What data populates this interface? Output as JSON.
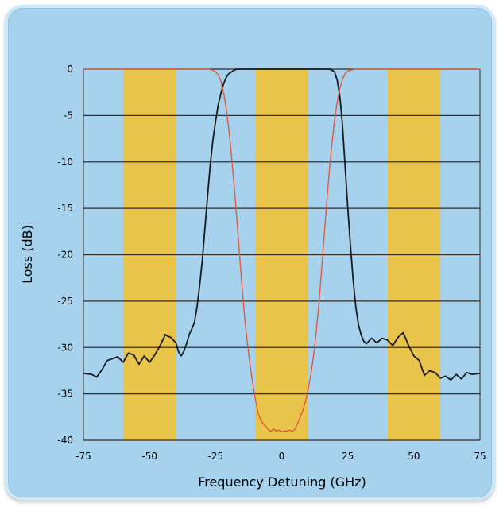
{
  "chart_data": {
    "type": "line",
    "title": "",
    "xlabel": "Frequency Detuning (GHz)",
    "ylabel": "Loss (dB)",
    "xlim": [
      -75,
      75
    ],
    "ylim": [
      -40,
      0
    ],
    "x_ticks": [
      "-75",
      "-50",
      "-25",
      "0",
      "25",
      "50",
      "75"
    ],
    "y_ticks": [
      "0",
      "-5",
      "-10",
      "-15",
      "-20",
      "-25",
      "-30",
      "-35",
      "-40"
    ],
    "grid": "horizontal",
    "highlight_bands": [
      [
        -60,
        -40
      ],
      [
        -10,
        10
      ],
      [
        40,
        60
      ]
    ],
    "colors": {
      "band": "#e8c44a",
      "plot_background": "#a6d2ee",
      "grid": "#3a2a20",
      "series_black": "#1a1a1a",
      "series_red": "#e05a3a"
    },
    "series": [
      {
        "color": "#1a1a1a",
        "x": [
          -75,
          -72,
          -70,
          -68,
          -66,
          -64,
          -62,
          -60,
          -58,
          -56,
          -54,
          -52,
          -50,
          -48,
          -46,
          -44,
          -43,
          -42,
          -41,
          -40,
          -39,
          -38,
          -37,
          -36,
          -35,
          -34,
          -33,
          -32,
          -31,
          -30,
          -29,
          -28,
          -27,
          -26,
          -25,
          -24,
          -23,
          -22,
          -21,
          -20,
          -19,
          -18,
          -17,
          -16,
          -15,
          -14,
          -13,
          -12,
          -11,
          -10,
          -8,
          -6,
          -4,
          -2,
          0,
          2,
          4,
          6,
          8,
          10,
          12,
          14,
          16,
          18,
          19,
          20,
          21,
          22,
          23,
          24,
          25,
          26,
          27,
          28,
          29,
          30,
          31,
          32,
          34,
          36,
          38,
          40,
          42,
          44,
          46,
          48,
          50,
          52,
          54,
          56,
          58,
          60,
          62,
          64,
          66,
          68,
          70,
          72,
          75
        ],
        "y": [
          -32.8,
          -32.9,
          -33.2,
          -32.4,
          -31.4,
          -31.2,
          -31.0,
          -31.6,
          -30.6,
          -30.8,
          -31.8,
          -30.9,
          -31.6,
          -30.8,
          -29.8,
          -28.6,
          -28.8,
          -28.9,
          -29.2,
          -29.5,
          -30.5,
          -30.9,
          -30.4,
          -29.6,
          -28.6,
          -28.0,
          -27.3,
          -25.6,
          -23.2,
          -20.5,
          -17.0,
          -13.5,
          -10.2,
          -7.6,
          -5.6,
          -3.8,
          -2.6,
          -1.6,
          -0.9,
          -0.5,
          -0.3,
          -0.1,
          0,
          0,
          0,
          0,
          0,
          0,
          0,
          0,
          0,
          0,
          0,
          0,
          0,
          0,
          0,
          0,
          0,
          0,
          0,
          0,
          0,
          0,
          -0.1,
          -0.3,
          -1.2,
          -3.0,
          -6.0,
          -10.5,
          -15.0,
          -19.0,
          -22.6,
          -25.5,
          -27.5,
          -28.6,
          -29.3,
          -29.6,
          -29.0,
          -29.5,
          -29.0,
          -29.2,
          -29.8,
          -28.9,
          -28.4,
          -29.8,
          -30.9,
          -31.4,
          -33.0,
          -32.5,
          -32.7,
          -33.3,
          -33.1,
          -33.5,
          -32.9,
          -33.4,
          -32.7,
          -32.9,
          -32.8
        ]
      },
      {
        "color": "#e05a3a",
        "x": [
          -75,
          -40,
          -30,
          -28,
          -26,
          -25,
          -24,
          -23,
          -22,
          -21,
          -20,
          -19,
          -18,
          -17,
          -16,
          -15,
          -14,
          -13,
          -12,
          -11,
          -10,
          -9,
          -8,
          -7,
          -6,
          -5,
          -4,
          -3,
          -2,
          -1,
          0,
          1,
          2,
          3,
          4,
          5,
          6,
          7,
          8,
          9,
          10,
          11,
          12,
          13,
          14,
          15,
          16,
          17,
          18,
          19,
          20,
          21,
          22,
          23,
          24,
          25,
          26,
          28,
          30,
          40,
          75
        ],
        "y": [
          0,
          0,
          0,
          0,
          -0.1,
          -0.3,
          -0.6,
          -1.3,
          -2.5,
          -4.2,
          -6.5,
          -9.3,
          -12.5,
          -16.0,
          -19.8,
          -23.5,
          -26.8,
          -29.5,
          -31.8,
          -33.8,
          -35.5,
          -37.0,
          -37.8,
          -38.2,
          -38.5,
          -38.9,
          -39.0,
          -38.8,
          -39.0,
          -38.9,
          -39.1,
          -39.0,
          -39.0,
          -38.9,
          -39.1,
          -38.8,
          -38.2,
          -37.5,
          -36.8,
          -35.8,
          -34.5,
          -33.0,
          -31.0,
          -28.5,
          -25.5,
          -22.0,
          -18.2,
          -14.5,
          -11.0,
          -8.0,
          -5.5,
          -3.5,
          -2.1,
          -1.1,
          -0.5,
          -0.2,
          -0.1,
          0,
          0,
          0,
          0
        ]
      }
    ]
  }
}
